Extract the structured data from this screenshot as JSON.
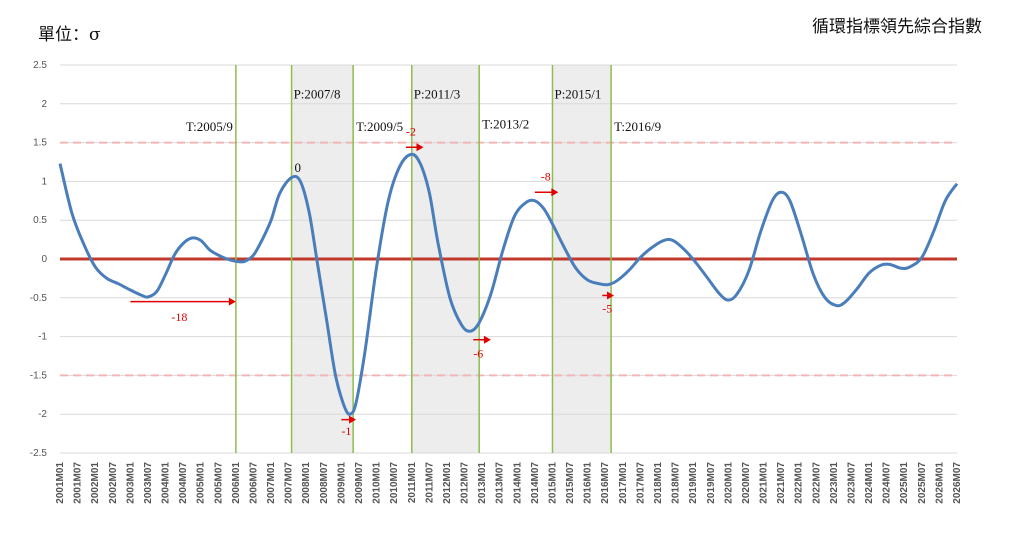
{
  "header": {
    "unit_label": "單位：σ",
    "title": "循環指標領先綜合指數"
  },
  "chart_data": {
    "type": "line",
    "title": "循環指標領先綜合指數",
    "ylabel": "單位：σ",
    "xlabel": "",
    "ylim": [
      -2.5,
      2.5
    ],
    "yticks": [
      "2.5",
      "2",
      "1.5",
      "1",
      "0.5",
      "0",
      "-0.5",
      "-1",
      "-1.5",
      "-2",
      "-2.5"
    ],
    "xlim": [
      "2001M01",
      "2026M07"
    ],
    "xticks": [
      "2001M01",
      "2001M07",
      "2002M01",
      "2002M07",
      "2003M01",
      "2003M07",
      "2004M01",
      "2004M07",
      "2005M01",
      "2005M07",
      "2006M01",
      "2006M07",
      "2007M01",
      "2007M07",
      "2008M01",
      "2008M07",
      "2009M01",
      "2009M07",
      "2010M01",
      "2010M07",
      "2011M01",
      "2011M07",
      "2012M01",
      "2012M07",
      "2013M01",
      "2013M07",
      "2014M01",
      "2014M07",
      "2015M01",
      "2015M07",
      "2016M01",
      "2016M07",
      "2017M01",
      "2017M07",
      "2018M01",
      "2018M07",
      "2019M01",
      "2019M07",
      "2020M01",
      "2020M07",
      "2021M01",
      "2021M07",
      "2022M01",
      "2022M07",
      "2023M01",
      "2023M07",
      "2024M01",
      "2024M07",
      "2025M01",
      "2025M07",
      "2026M01",
      "2026M07"
    ],
    "grid": true,
    "reference_lines": [
      {
        "y": 0,
        "color": "#c0392b",
        "style": "solid"
      },
      {
        "y": 1.5,
        "color": "#f3b6b6",
        "style": "dashed"
      },
      {
        "y": -1.5,
        "color": "#f3b6b6",
        "style": "dashed"
      }
    ],
    "series": [
      {
        "color": "#4a7ebb",
        "points": [
          [
            "2001M01",
            1.23
          ],
          [
            "2001M05",
            0.6
          ],
          [
            "2001M09",
            0.2
          ],
          [
            "2002M01",
            -0.1
          ],
          [
            "2002M05",
            -0.25
          ],
          [
            "2002M09",
            -0.32
          ],
          [
            "2003M01",
            -0.4
          ],
          [
            "2003M05",
            -0.47
          ],
          [
            "2003M07",
            -0.49
          ],
          [
            "2003M10",
            -0.42
          ],
          [
            "2004M01",
            -0.2
          ],
          [
            "2004M04",
            0.05
          ],
          [
            "2004M07",
            0.2
          ],
          [
            "2004M10",
            0.27
          ],
          [
            "2005M01",
            0.24
          ],
          [
            "2005M04",
            0.12
          ],
          [
            "2005M07",
            0.05
          ],
          [
            "2005M10",
            0.0
          ],
          [
            "2006M01",
            -0.03
          ],
          [
            "2006M04",
            -0.03
          ],
          [
            "2006M07",
            0.05
          ],
          [
            "2006M10",
            0.25
          ],
          [
            "2007M01",
            0.5
          ],
          [
            "2007M04",
            0.85
          ],
          [
            "2007M08",
            1.05
          ],
          [
            "2007M11",
            1.0
          ],
          [
            "2008M02",
            0.6
          ],
          [
            "2008M05",
            -0.1
          ],
          [
            "2008M08",
            -0.8
          ],
          [
            "2008M11",
            -1.5
          ],
          [
            "2009M02",
            -1.9
          ],
          [
            "2009M04",
            -2.0
          ],
          [
            "2009M06",
            -1.85
          ],
          [
            "2009M09",
            -1.2
          ],
          [
            "2010M01",
            -0.1
          ],
          [
            "2010M05",
            0.75
          ],
          [
            "2010M09",
            1.2
          ],
          [
            "2011M01",
            1.35
          ],
          [
            "2011M04",
            1.22
          ],
          [
            "2011M07",
            0.85
          ],
          [
            "2011M10",
            0.2
          ],
          [
            "2012M02",
            -0.5
          ],
          [
            "2012M06",
            -0.85
          ],
          [
            "2012M09",
            -0.93
          ],
          [
            "2012M12",
            -0.82
          ],
          [
            "2013M04",
            -0.45
          ],
          [
            "2013M08",
            0.1
          ],
          [
            "2013M12",
            0.55
          ],
          [
            "2014M04",
            0.73
          ],
          [
            "2014M07",
            0.75
          ],
          [
            "2014M10",
            0.65
          ],
          [
            "2015M01",
            0.45
          ],
          [
            "2015M05",
            0.15
          ],
          [
            "2015M09",
            -0.12
          ],
          [
            "2016M01",
            -0.27
          ],
          [
            "2016M05",
            -0.32
          ],
          [
            "2016M08",
            -0.33
          ],
          [
            "2016M11",
            -0.28
          ],
          [
            "2017M03",
            -0.15
          ],
          [
            "2017M07",
            0.02
          ],
          [
            "2017M11",
            0.15
          ],
          [
            "2018M03",
            0.24
          ],
          [
            "2018M06",
            0.24
          ],
          [
            "2018M10",
            0.12
          ],
          [
            "2019M02",
            -0.05
          ],
          [
            "2019M06",
            -0.25
          ],
          [
            "2019M10",
            -0.45
          ],
          [
            "2020M01",
            -0.53
          ],
          [
            "2020M04",
            -0.45
          ],
          [
            "2020M08",
            -0.15
          ],
          [
            "2020M12",
            0.35
          ],
          [
            "2021M04",
            0.75
          ],
          [
            "2021M07",
            0.86
          ],
          [
            "2021M10",
            0.75
          ],
          [
            "2022M02",
            0.3
          ],
          [
            "2022M06",
            -0.2
          ],
          [
            "2022M10",
            -0.5
          ],
          [
            "2023M02",
            -0.6
          ],
          [
            "2023M05",
            -0.55
          ],
          [
            "2023M09",
            -0.38
          ],
          [
            "2024M01",
            -0.18
          ],
          [
            "2024M05",
            -0.08
          ],
          [
            "2024M08",
            -0.07
          ],
          [
            "2024M12",
            -0.12
          ],
          [
            "2025M03",
            -0.1
          ],
          [
            "2025M07",
            0.02
          ],
          [
            "2025M11",
            0.35
          ],
          [
            "2026M03",
            0.75
          ],
          [
            "2026M07",
            0.97
          ]
        ]
      }
    ],
    "turning_points": [
      {
        "label": "T:2005/9",
        "kind": "trough",
        "date": "2006M01",
        "label_y": 1.65
      },
      {
        "label": "P:2007/8",
        "kind": "peak",
        "date": "2007M08",
        "label_y": 2.07
      },
      {
        "label": "T:2009/5",
        "kind": "trough",
        "date": "2009M05",
        "label_y": 1.65
      },
      {
        "label": "P:2011/3",
        "kind": "peak",
        "date": "2011M01",
        "label_y": 2.07
      },
      {
        "label": "T:2013/2",
        "kind": "trough",
        "date": "2012M12",
        "label_y": 1.68
      },
      {
        "label": "P:2015/1",
        "kind": "peak",
        "date": "2015M01",
        "label_y": 2.07
      },
      {
        "label": "T:2016/9",
        "kind": "trough",
        "date": "2016M09",
        "label_y": 1.65
      }
    ],
    "shaded_ranges": [
      [
        "2007M08",
        "2009M05"
      ],
      [
        "2011M01",
        "2012M12"
      ],
      [
        "2015M01",
        "2016M09"
      ]
    ],
    "lead_annotations": [
      {
        "text": "-18",
        "arrow_from": "2003M01",
        "arrow_to": "2006M01",
        "arrow_y": -0.55,
        "label_date": "2004M03",
        "label_y": -0.8
      },
      {
        "text": "0",
        "arrow_from": null,
        "arrow_to": null,
        "arrow_y": null,
        "label_date": "2007M09",
        "label_y": 1.12
      },
      {
        "text": "-1",
        "arrow_from": "2009M01",
        "arrow_to": "2009M06",
        "arrow_y": -2.07,
        "label_date": "2009M01",
        "label_y": -2.27
      },
      {
        "text": "-2",
        "arrow_from": "2010M11",
        "arrow_to": "2011M05",
        "arrow_y": 1.44,
        "label_date": "2010M11",
        "label_y": 1.59
      },
      {
        "text": "-6",
        "arrow_from": "2012M10",
        "arrow_to": "2013M04",
        "arrow_y": -1.04,
        "label_date": "2012M10",
        "label_y": -1.27
      },
      {
        "text": "-8",
        "arrow_from": "2014M07",
        "arrow_to": "2015M03",
        "arrow_y": 0.86,
        "label_date": "2014M09",
        "label_y": 1.01
      },
      {
        "text": "-5",
        "arrow_from": "2016M06",
        "arrow_to": "2016M10",
        "arrow_y": -0.47,
        "label_date": "2016M06",
        "label_y": -0.69
      }
    ]
  }
}
